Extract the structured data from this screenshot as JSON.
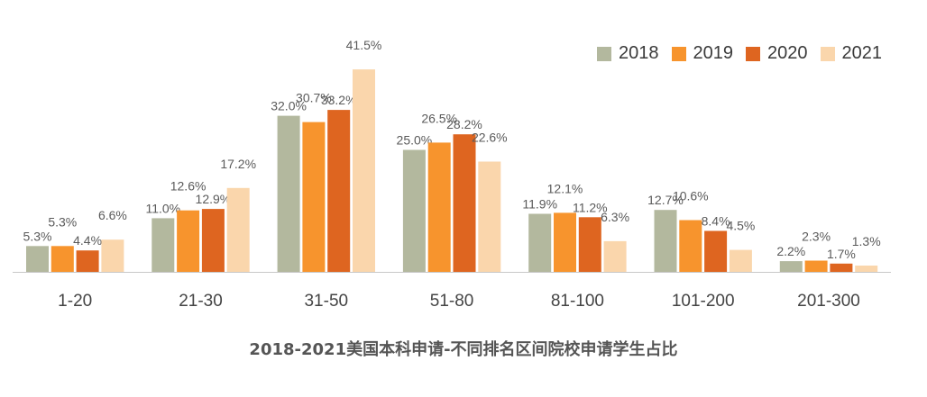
{
  "chart_data": {
    "type": "bar",
    "title": "2018-2021美国本科申请-不同排名区间院校申请学生占比",
    "categories": [
      "1-20",
      "21-30",
      "31-50",
      "51-80",
      "81-100",
      "101-200",
      "201-300"
    ],
    "series": [
      {
        "name": "2018",
        "color": "#b3b89e",
        "values": [
          5.3,
          11.0,
          32.0,
          25.0,
          11.9,
          12.7,
          2.2
        ],
        "labels": [
          "5.3%",
          "11.0%",
          "32.0%",
          "25.0%",
          "11.9%",
          "12.7%",
          "2.2%"
        ]
      },
      {
        "name": "2019",
        "color": "#f7942d",
        "values": [
          5.3,
          12.6,
          30.7,
          26.5,
          12.1,
          10.6,
          2.3
        ],
        "labels": [
          "5.3%",
          "12.6%",
          "30.7%",
          "26.5%",
          "12.1%",
          "10.6%",
          "2.3%"
        ]
      },
      {
        "name": "2020",
        "color": "#de6520",
        "values": [
          4.4,
          12.9,
          33.2,
          28.2,
          11.2,
          8.4,
          1.7
        ],
        "labels": [
          "4.4%",
          "12.9%",
          "33.2%",
          "28.2%",
          "11.2%",
          "8.4%",
          "1.7%"
        ]
      },
      {
        "name": "2021",
        "color": "#fad6ac",
        "values": [
          6.6,
          17.2,
          41.5,
          22.6,
          6.3,
          4.5,
          1.3
        ],
        "labels": [
          "6.6%",
          "17.2%",
          "41.5%",
          "22.6%",
          "6.3%",
          "4.5%",
          "1.3%"
        ]
      }
    ],
    "ylim": [
      0,
      41.5
    ],
    "grid": false,
    "legend": "top-right",
    "xlabel": "",
    "ylabel": ""
  }
}
